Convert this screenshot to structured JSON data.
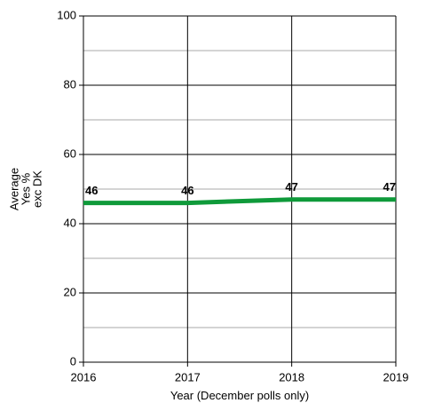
{
  "chart_data": {
    "type": "line",
    "x": [
      2016,
      2017,
      2018,
      2019
    ],
    "series": [
      {
        "name": "Average Yes % exc DK",
        "color": "#0f9a3a",
        "values": [
          46,
          46,
          47,
          47
        ]
      }
    ],
    "xlim": [
      2016,
      2019
    ],
    "xticks": [
      2016,
      2017,
      2018,
      2019
    ],
    "ylim": [
      0,
      100
    ],
    "yticks": [
      0,
      20,
      40,
      60,
      80,
      100
    ],
    "minor_yticks": [
      10,
      30,
      50,
      70,
      90
    ],
    "xlabel": "Year (December polls only)",
    "ylabel": [
      "Average",
      "Yes %",
      "exc DK"
    ],
    "grid": true,
    "data_labels": true
  }
}
